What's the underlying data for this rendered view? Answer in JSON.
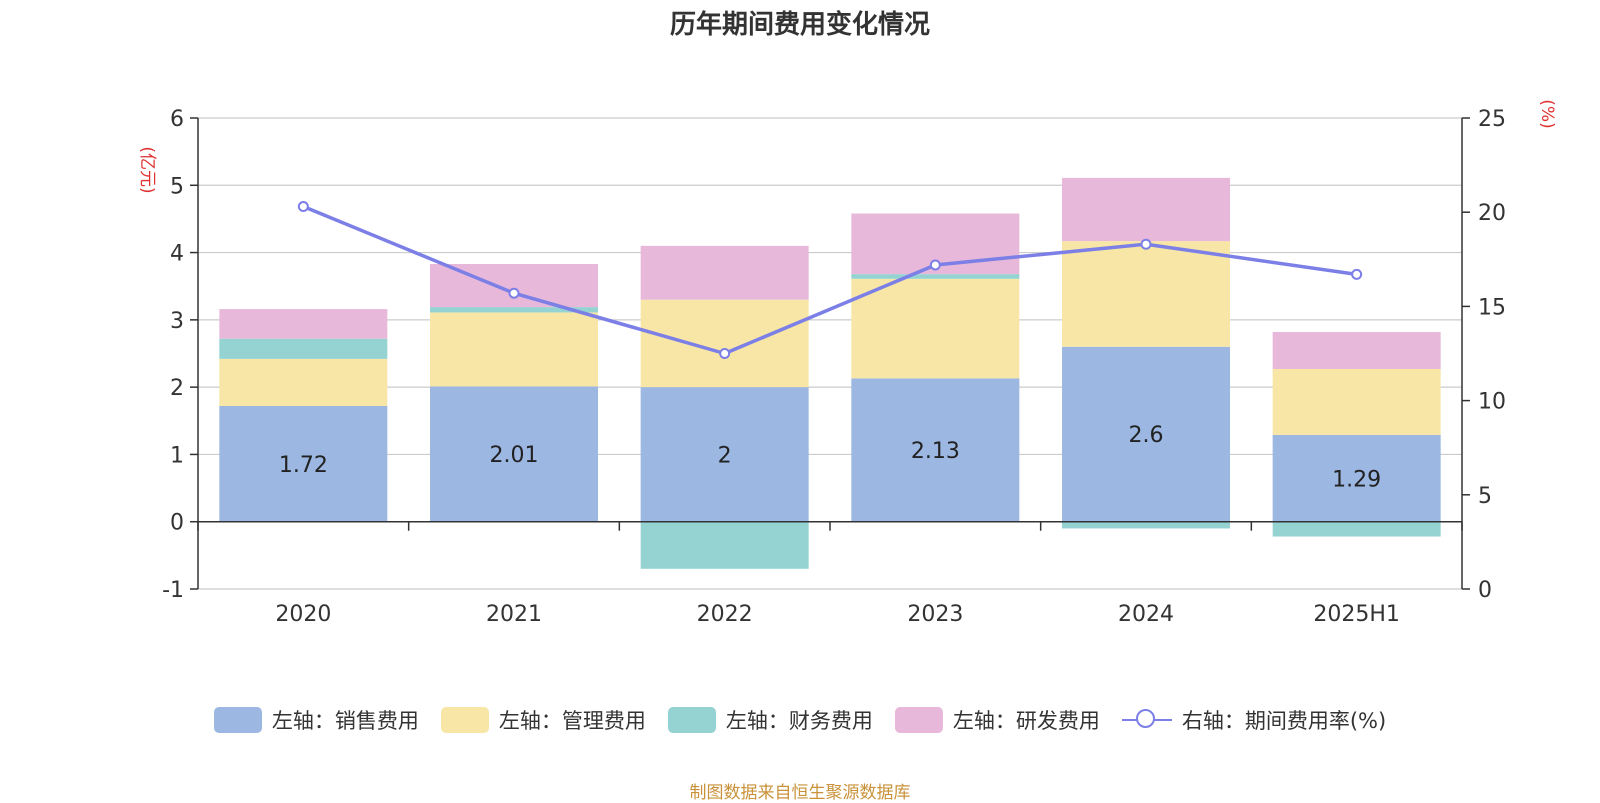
{
  "title": "历年期间费用变化情况",
  "source": "制图数据来自恒生聚源数据库",
  "colors": {
    "sales": "#9bb7e2",
    "admin": "#f8e6a6",
    "finance": "#95d3d3",
    "rnd": "#e7b8d9",
    "rate_line": "#7b7fe6",
    "axis_unit": "#e03030"
  },
  "chart_data": {
    "type": "bar",
    "stacked": true,
    "categories": [
      "2020",
      "2021",
      "2022",
      "2023",
      "2024",
      "2025H1"
    ],
    "series": [
      {
        "name": "左轴：销售费用",
        "axis": "left",
        "values": [
          1.72,
          2.01,
          2.0,
          2.13,
          2.6,
          1.29
        ],
        "data_labels": [
          "1.72",
          "2.01",
          "2",
          "2.13",
          "2.6",
          "1.29"
        ]
      },
      {
        "name": "左轴：管理费用",
        "axis": "left",
        "values": [
          0.7,
          1.1,
          1.3,
          1.48,
          1.57,
          0.98
        ]
      },
      {
        "name": "左轴：财务费用",
        "axis": "left",
        "values": [
          0.3,
          0.08,
          -0.7,
          0.07,
          -0.1,
          -0.22
        ]
      },
      {
        "name": "左轴：研发费用",
        "axis": "left",
        "values": [
          0.44,
          0.64,
          0.8,
          0.9,
          0.94,
          0.55
        ]
      },
      {
        "name": "右轴：期间费用率(%)",
        "axis": "right",
        "type": "line",
        "values": [
          20.3,
          15.7,
          12.5,
          17.2,
          18.3,
          16.7
        ]
      }
    ],
    "y_left": {
      "unit_label": "(亿元)",
      "min": -1,
      "max": 6,
      "ticks": [
        -1,
        0,
        1,
        2,
        3,
        4,
        5,
        6
      ]
    },
    "y_right": {
      "unit_label": "(%)",
      "min": 0,
      "max": 25,
      "ticks": [
        0,
        5,
        10,
        15,
        20,
        25
      ]
    },
    "grid": true,
    "legend_position": "bottom"
  }
}
